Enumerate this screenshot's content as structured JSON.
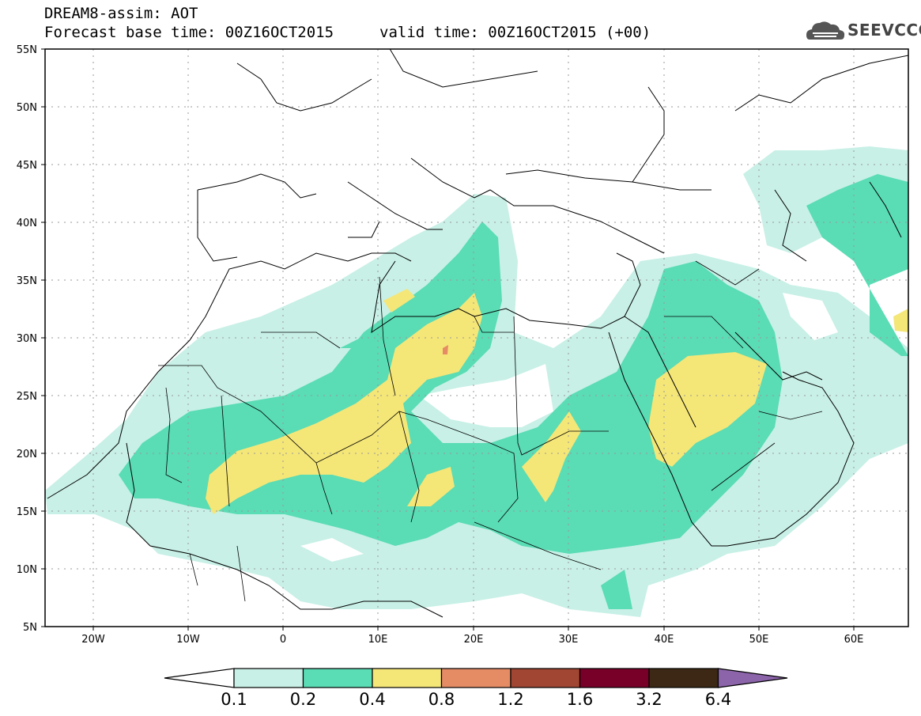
{
  "header": {
    "title": "DREAM8-assim: AOT",
    "base_time": "Forecast base time: 00Z16OCT2015",
    "valid_time": "valid time: 00Z16OCT2015 (+00)"
  },
  "logo": {
    "text": "SEEVCCC",
    "icon": "cloud-icon"
  },
  "map": {
    "lat_labels": [
      "55N",
      "50N",
      "45N",
      "40N",
      "35N",
      "30N",
      "25N",
      "20N",
      "15N",
      "10N",
      "5N"
    ],
    "lon_labels": [
      "20W",
      "10W",
      "0",
      "10E",
      "20E",
      "30E",
      "40E",
      "50E",
      "60E"
    ],
    "lat_range": [
      5,
      55
    ],
    "lon_range": [
      -25,
      65
    ]
  },
  "colorbar": {
    "levels": [
      "0.1",
      "0.2",
      "0.4",
      "0.8",
      "1.2",
      "1.6",
      "3.2",
      "6.4"
    ],
    "colors": [
      "#c8f0e6",
      "#5adcb4",
      "#f5e678",
      "#e68c64",
      "#a04632",
      "#780028",
      "#3c2814",
      "#8c64aa"
    ]
  }
}
